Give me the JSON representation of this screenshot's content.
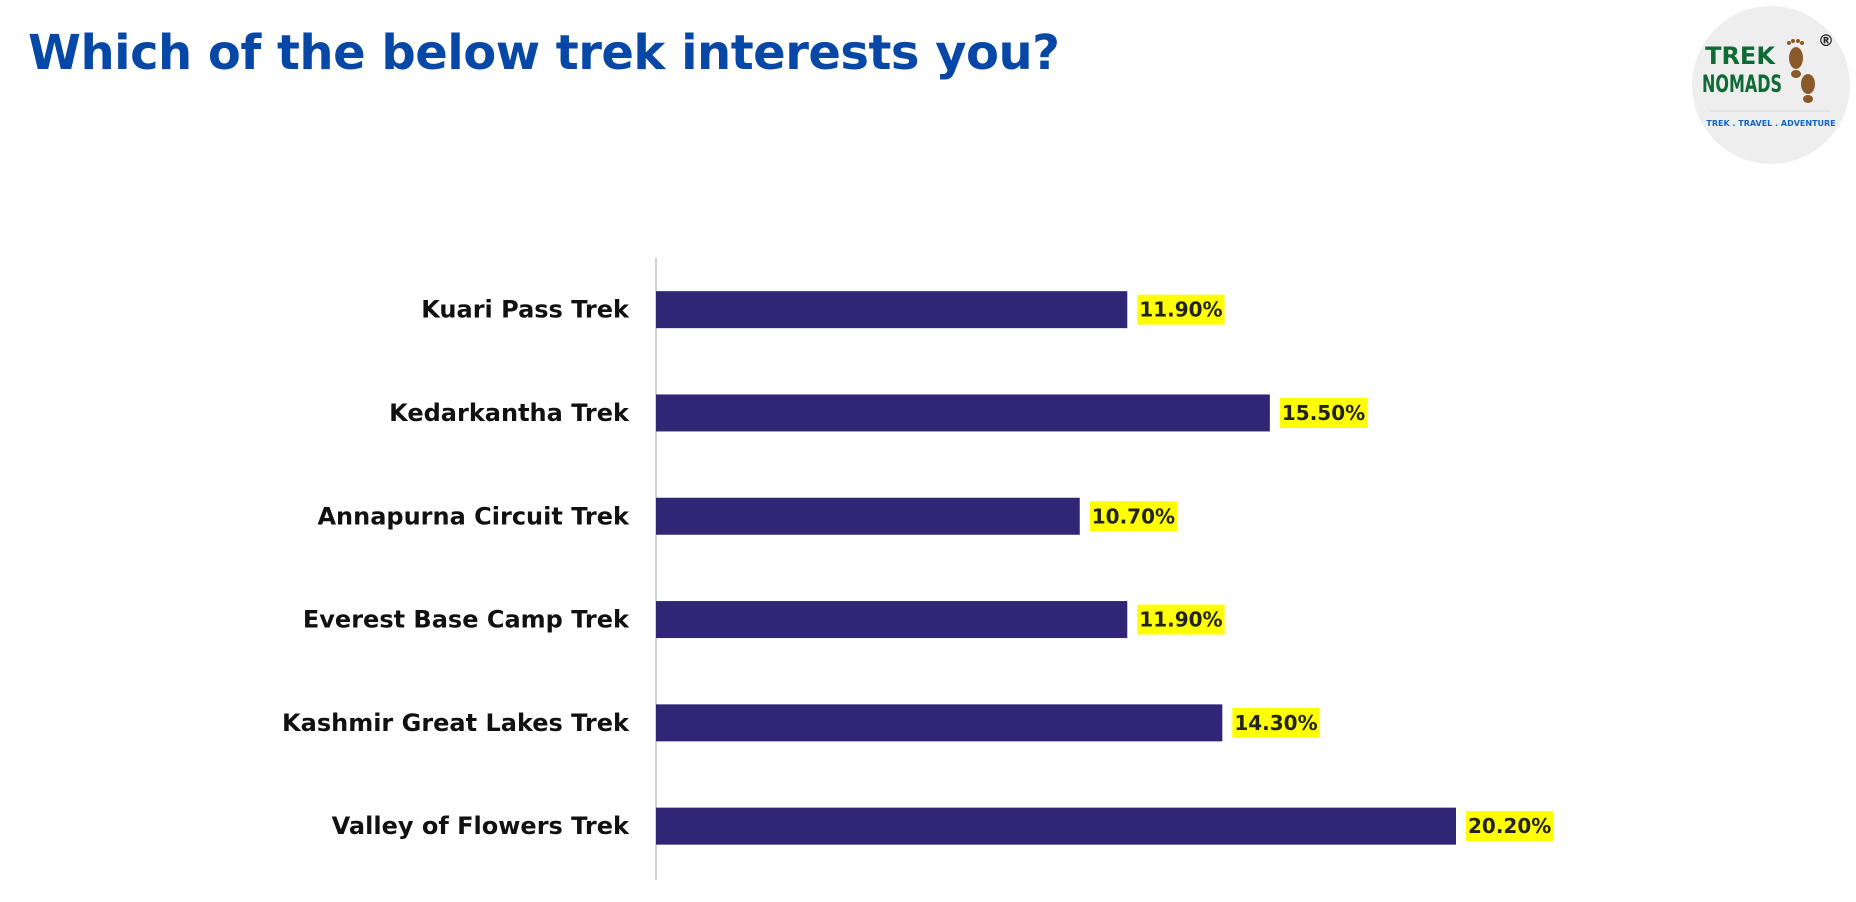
{
  "header": {
    "title": "Which of the below trek interests you?"
  },
  "logo": {
    "line1": "TREK",
    "line2": "NOMADS",
    "tagline": "TREK . TRAVEL . ADVENTURE",
    "registered_mark": "®",
    "icon": "footprint-icon"
  },
  "colors": {
    "title": "#0747a6",
    "bar": "#312676",
    "label_highlight": "#ffff00",
    "logo_green": "#0f6b35",
    "logo_brown": "#8b5a2b",
    "logo_blue": "#1565c0"
  },
  "chart_data": {
    "type": "bar",
    "orientation": "horizontal",
    "categories": [
      "Kuari Pass Trek",
      "Kedarkantha Trek",
      "Annapurna Circuit Trek",
      "Everest Base Camp Trek",
      "Kashmir Great Lakes Trek",
      "Valley of Flowers Trek"
    ],
    "values": [
      11.9,
      15.5,
      10.7,
      11.9,
      14.3,
      20.2
    ],
    "value_labels": [
      "11.90%",
      "15.50%",
      "10.70%",
      "11.90%",
      "14.30%",
      "20.20%"
    ],
    "xlim": [
      0,
      20.2
    ],
    "grid": false,
    "legend": "none"
  }
}
